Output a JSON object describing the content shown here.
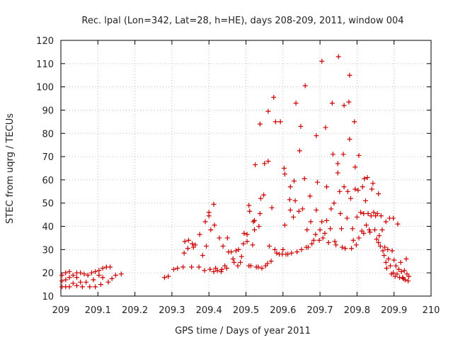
{
  "chart_data": {
    "type": "scatter",
    "title": "Rec. lpal (Lon=342, Lat=28, h=HE), days 208-209, 2011, window 004",
    "xlabel": "GPS time / Days of year 2011",
    "ylabel": "STEC from uqrg / TECUs",
    "xlim": [
      209,
      210
    ],
    "ylim": [
      10,
      120
    ],
    "x_ticks": [
      209,
      209.1,
      209.2,
      209.3,
      209.4,
      209.5,
      209.6,
      209.7,
      209.8,
      209.9,
      210
    ],
    "x_tick_labels": [
      "209",
      "209.1",
      "209.2",
      "209.3",
      "209.4",
      "209.5",
      "209.6",
      "209.7",
      "209.8",
      "209.9",
      "210"
    ],
    "y_ticks": [
      10,
      20,
      30,
      40,
      50,
      60,
      70,
      80,
      90,
      100,
      110,
      120
    ],
    "y_tick_labels": [
      "10",
      "20",
      "30",
      "40",
      "50",
      "60",
      "70",
      "80",
      "90",
      "100",
      "110",
      "120"
    ],
    "grid": true,
    "marker": "plus",
    "color": "#cc0000",
    "points": [
      [
        209.003,
        19.0
      ],
      [
        209.003,
        16.5
      ],
      [
        209.003,
        14.0
      ],
      [
        209.013,
        20.0
      ],
      [
        209.013,
        17.0
      ],
      [
        209.013,
        14.0
      ],
      [
        209.023,
        20.5
      ],
      [
        209.023,
        18.0
      ],
      [
        209.023,
        14.0
      ],
      [
        209.033,
        19.0
      ],
      [
        209.033,
        15.5
      ],
      [
        209.043,
        20.0
      ],
      [
        209.043,
        18.0
      ],
      [
        209.043,
        14.5
      ],
      [
        209.053,
        20.0
      ],
      [
        209.053,
        16.0
      ],
      [
        209.058,
        14.0
      ],
      [
        209.063,
        19.5
      ],
      [
        209.068,
        16.0
      ],
      [
        209.073,
        19.0
      ],
      [
        209.078,
        14.0
      ],
      [
        209.083,
        20.0
      ],
      [
        209.088,
        17.0
      ],
      [
        209.093,
        20.5
      ],
      [
        209.093,
        14.0
      ],
      [
        209.103,
        21.0
      ],
      [
        209.103,
        19.0
      ],
      [
        209.108,
        15.0
      ],
      [
        209.113,
        18.0
      ],
      [
        209.113,
        22.0
      ],
      [
        209.123,
        22.5
      ],
      [
        209.128,
        16.0
      ],
      [
        209.133,
        22.5
      ],
      [
        209.138,
        17.5
      ],
      [
        209.148,
        19.0
      ],
      [
        209.163,
        19.5
      ],
      [
        209.28,
        18.0
      ],
      [
        209.29,
        18.5
      ],
      [
        209.305,
        21.5
      ],
      [
        209.315,
        22.0
      ],
      [
        209.33,
        22.5
      ],
      [
        209.333,
        28.5
      ],
      [
        209.335,
        33.5
      ],
      [
        209.343,
        30.5
      ],
      [
        209.345,
        34.0
      ],
      [
        209.353,
        22.5
      ],
      [
        209.355,
        32.5
      ],
      [
        209.358,
        31.0
      ],
      [
        209.363,
        32.0
      ],
      [
        209.373,
        22.5
      ],
      [
        209.375,
        36.5
      ],
      [
        209.383,
        27.5
      ],
      [
        209.388,
        21.0
      ],
      [
        209.39,
        42.0
      ],
      [
        209.393,
        31.5
      ],
      [
        209.4,
        44.5
      ],
      [
        209.4,
        46.0
      ],
      [
        209.403,
        21.5
      ],
      [
        209.405,
        38.5
      ],
      [
        209.413,
        49.5
      ],
      [
        209.413,
        20.5
      ],
      [
        209.415,
        40.5
      ],
      [
        209.418,
        22.0
      ],
      [
        209.423,
        21.0
      ],
      [
        209.428,
        35.0
      ],
      [
        209.433,
        20.5
      ],
      [
        209.435,
        21.5
      ],
      [
        209.438,
        31.5
      ],
      [
        209.443,
        23.0
      ],
      [
        209.448,
        22.0
      ],
      [
        209.45,
        35.0
      ],
      [
        209.453,
        29.0
      ],
      [
        209.46,
        29.0
      ],
      [
        209.465,
        26.0
      ],
      [
        209.468,
        24.5
      ],
      [
        209.473,
        29.5
      ],
      [
        209.478,
        23.0
      ],
      [
        209.48,
        30.0
      ],
      [
        209.485,
        24.5
      ],
      [
        209.488,
        27.0
      ],
      [
        209.493,
        32.5
      ],
      [
        209.495,
        37.0
      ],
      [
        209.503,
        36.5
      ],
      [
        209.503,
        33.5
      ],
      [
        209.508,
        23.0
      ],
      [
        209.508,
        49.0
      ],
      [
        209.51,
        46.5
      ],
      [
        209.513,
        23.0
      ],
      [
        209.518,
        32.0
      ],
      [
        209.52,
        42.0
      ],
      [
        209.523,
        42.5
      ],
      [
        209.523,
        38.5
      ],
      [
        209.525,
        66.5
      ],
      [
        209.528,
        22.5
      ],
      [
        209.533,
        22.5
      ],
      [
        209.535,
        40.0
      ],
      [
        209.538,
        84.0
      ],
      [
        209.538,
        45.5
      ],
      [
        209.54,
        52.0
      ],
      [
        209.543,
        22.0
      ],
      [
        209.548,
        53.5
      ],
      [
        209.55,
        67.0
      ],
      [
        209.553,
        23.0
      ],
      [
        209.558,
        24.0
      ],
      [
        209.56,
        68.0
      ],
      [
        209.56,
        89.5
      ],
      [
        209.563,
        31.5
      ],
      [
        209.568,
        25.0
      ],
      [
        209.57,
        48.0
      ],
      [
        209.575,
        95.5
      ],
      [
        209.578,
        30.0
      ],
      [
        209.58,
        85.0
      ],
      [
        209.583,
        28.5
      ],
      [
        209.59,
        28.0
      ],
      [
        209.593,
        85.0
      ],
      [
        209.598,
        28.0
      ],
      [
        209.6,
        30.0
      ],
      [
        209.603,
        65.0
      ],
      [
        209.605,
        62.5
      ],
      [
        209.605,
        40.5
      ],
      [
        209.608,
        28.0
      ],
      [
        209.613,
        28.0
      ],
      [
        209.618,
        51.5
      ],
      [
        209.62,
        57.0
      ],
      [
        209.62,
        47.0
      ],
      [
        209.623,
        28.5
      ],
      [
        209.628,
        44.0
      ],
      [
        209.63,
        59.5
      ],
      [
        209.633,
        51.0
      ],
      [
        209.635,
        93.0
      ],
      [
        209.638,
        29.0
      ],
      [
        209.643,
        46.5
      ],
      [
        209.645,
        72.5
      ],
      [
        209.648,
        83.0
      ],
      [
        209.65,
        30.0
      ],
      [
        209.653,
        47.5
      ],
      [
        209.658,
        60.5
      ],
      [
        209.66,
        100.5
      ],
      [
        209.663,
        31.0
      ],
      [
        209.665,
        38.5
      ],
      [
        209.668,
        31.0
      ],
      [
        209.673,
        53.0
      ],
      [
        209.675,
        42.0
      ],
      [
        209.678,
        32.5
      ],
      [
        209.683,
        34.0
      ],
      [
        209.688,
        36.5
      ],
      [
        209.69,
        79.0
      ],
      [
        209.69,
        47.0
      ],
      [
        209.693,
        59.0
      ],
      [
        209.698,
        34.0
      ],
      [
        209.7,
        38.5
      ],
      [
        209.705,
        111.0
      ],
      [
        209.705,
        42.0
      ],
      [
        209.708,
        35.0
      ],
      [
        209.713,
        37.0
      ],
      [
        209.715,
        82.5
      ],
      [
        209.718,
        57.0
      ],
      [
        209.718,
        42.5
      ],
      [
        209.723,
        33.0
      ],
      [
        209.728,
        39.0
      ],
      [
        209.73,
        47.5
      ],
      [
        209.733,
        93.0
      ],
      [
        209.735,
        71.0
      ],
      [
        209.738,
        50.0
      ],
      [
        209.74,
        33.5
      ],
      [
        209.743,
        32.0
      ],
      [
        209.748,
        67.0
      ],
      [
        209.748,
        63.0
      ],
      [
        209.75,
        113.0
      ],
      [
        209.753,
        55.0
      ],
      [
        209.755,
        45.5
      ],
      [
        209.758,
        39.0
      ],
      [
        209.76,
        31.0
      ],
      [
        209.763,
        71.0
      ],
      [
        209.765,
        92.0
      ],
      [
        209.765,
        57.0
      ],
      [
        209.768,
        30.5
      ],
      [
        209.773,
        43.5
      ],
      [
        209.775,
        55.0
      ],
      [
        209.778,
        93.5
      ],
      [
        209.78,
        105.0
      ],
      [
        209.78,
        77.5
      ],
      [
        209.783,
        52.0
      ],
      [
        209.785,
        30.5
      ],
      [
        209.788,
        39.0
      ],
      [
        209.79,
        34.0
      ],
      [
        209.793,
        85.0
      ],
      [
        209.795,
        65.5
      ],
      [
        209.795,
        56.0
      ],
      [
        209.798,
        32.0
      ],
      [
        209.8,
        44.0
      ],
      [
        209.803,
        55.5
      ],
      [
        209.805,
        70.5
      ],
      [
        209.805,
        35.0
      ],
      [
        209.81,
        46.0
      ],
      [
        209.813,
        38.0
      ],
      [
        209.815,
        57.0
      ],
      [
        209.818,
        45.5
      ],
      [
        209.818,
        37.0
      ],
      [
        209.82,
        60.5
      ],
      [
        209.823,
        51.0
      ],
      [
        209.825,
        40.5
      ],
      [
        209.828,
        61.0
      ],
      [
        209.83,
        45.5
      ],
      [
        209.833,
        38.5
      ],
      [
        209.835,
        37.5
      ],
      [
        209.838,
        44.5
      ],
      [
        209.84,
        56.0
      ],
      [
        209.843,
        58.5
      ],
      [
        209.845,
        46.0
      ],
      [
        209.848,
        38.5
      ],
      [
        209.85,
        44.5
      ],
      [
        209.853,
        34.5
      ],
      [
        209.855,
        45.5
      ],
      [
        209.858,
        54.0
      ],
      [
        209.858,
        33.0
      ],
      [
        209.86,
        36.0
      ],
      [
        209.863,
        31.5
      ],
      [
        209.865,
        44.5
      ],
      [
        209.868,
        38.5
      ],
      [
        209.87,
        29.5
      ],
      [
        209.873,
        27.5
      ],
      [
        209.875,
        31.0
      ],
      [
        209.878,
        42.0
      ],
      [
        209.878,
        24.5
      ],
      [
        209.88,
        22.0
      ],
      [
        209.883,
        30.0
      ],
      [
        209.885,
        26.0
      ],
      [
        209.888,
        43.5
      ],
      [
        209.89,
        23.0
      ],
      [
        209.893,
        19.5
      ],
      [
        209.895,
        29.5
      ],
      [
        209.898,
        43.5
      ],
      [
        209.898,
        20.0
      ],
      [
        209.9,
        25.5
      ],
      [
        209.903,
        18.5
      ],
      [
        209.905,
        23.0
      ],
      [
        209.908,
        19.5
      ],
      [
        209.91,
        41.0
      ],
      [
        209.913,
        21.5
      ],
      [
        209.915,
        18.0
      ],
      [
        209.918,
        24.5
      ],
      [
        209.92,
        20.5
      ],
      [
        209.923,
        18.0
      ],
      [
        209.925,
        17.5
      ],
      [
        209.928,
        21.0
      ],
      [
        209.93,
        17.0
      ],
      [
        209.933,
        26.0
      ],
      [
        209.935,
        19.5
      ],
      [
        209.938,
        16.5
      ],
      [
        209.94,
        18.5
      ]
    ]
  }
}
